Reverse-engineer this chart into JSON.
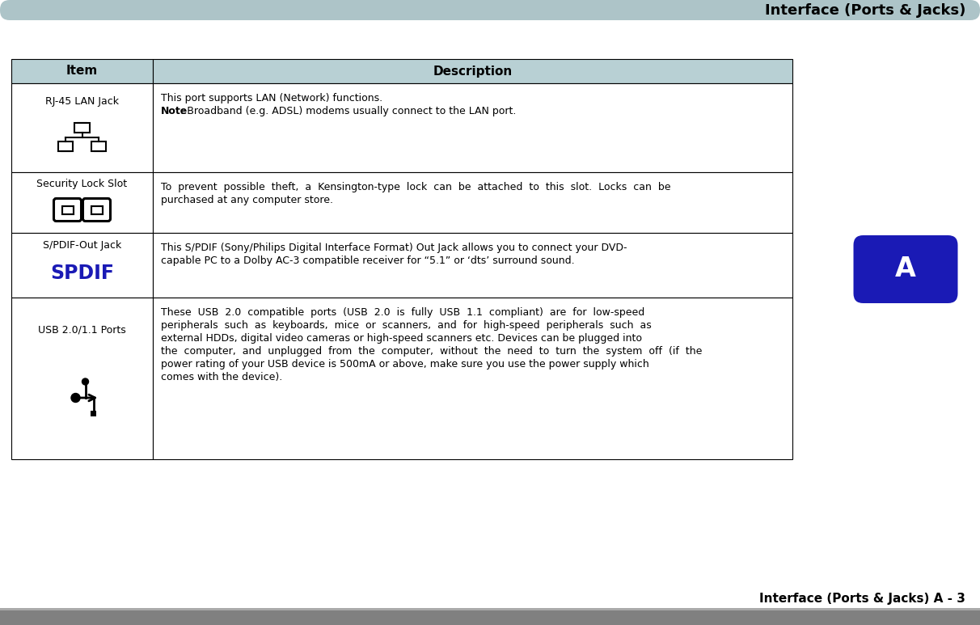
{
  "title": "Interface (Ports & Jacks)",
  "footer": "Interface (Ports & Jacks) A - 3",
  "header_bg": "#adc4c8",
  "footer_bg": "#808080",
  "table_header_bg": "#b8d0d4",
  "border_color": "#000000",
  "col1_header": "Item",
  "col2_header": "Description",
  "rows": [
    {
      "item": "RJ-45 LAN Jack",
      "item_icon": "network",
      "desc_lines": [
        {
          "text": "This port supports LAN (Network) functions.",
          "bold_prefix": ""
        },
        {
          "text": "Note: Broadband (e.g. ADSL) modems usually connect to the LAN port.",
          "bold_prefix": "Note"
        }
      ]
    },
    {
      "item": "Security Lock Slot",
      "item_icon": "lock",
      "desc_lines": [
        {
          "text": "To  prevent  possible  theft,  a  Kensington-type  lock  can  be  attached  to  this  slot.  Locks  can  be",
          "bold_prefix": ""
        },
        {
          "text": "purchased at any computer store.",
          "bold_prefix": ""
        }
      ]
    },
    {
      "item": "S/PDIF-Out Jack",
      "item_icon": "spdif",
      "desc_lines": [
        {
          "text": "This S/PDIF (Sony/Philips Digital Interface Format) Out Jack allows you to connect your DVD-",
          "bold_prefix": ""
        },
        {
          "text": "capable PC to a Dolby AC-3 compatible receiver for “5.1” or ‘dts’ surround sound.",
          "bold_prefix": ""
        }
      ]
    },
    {
      "item": "USB 2.0/1.1 Ports",
      "item_icon": "usb",
      "desc_lines": [
        {
          "text": "These  USB  2.0  compatible  ports  (USB  2.0  is  fully  USB  1.1  compliant)  are  for  low-speed",
          "bold_prefix": ""
        },
        {
          "text": "peripherals  such  as  keyboards,  mice  or  scanners,  and  for  high-speed  peripherals  such  as",
          "bold_prefix": ""
        },
        {
          "text": "external HDDs, digital video cameras or high-speed scanners etc. Devices can be plugged into",
          "bold_prefix": ""
        },
        {
          "text": "the  computer,  and  unplugged  from  the  computer,  without  the  need  to  turn  the  system  off  (if  the",
          "bold_prefix": ""
        },
        {
          "text": "power rating of your USB device is 500mA or above, make sure you use the power supply which",
          "bold_prefix": ""
        },
        {
          "text": "comes with the device).",
          "bold_prefix": ""
        }
      ]
    }
  ],
  "badge_color": "#1a1ab5",
  "badge_text": "A",
  "badge_text_color": "#ffffff",
  "fig_width": 12.12,
  "fig_height": 7.73,
  "dpi": 100
}
